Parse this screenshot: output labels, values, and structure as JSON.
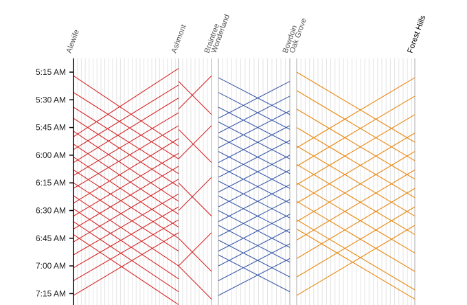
{
  "chart_data": {
    "type": "marey",
    "ylim": [
      308,
      441
    ],
    "yticks": [
      {
        "value": 315,
        "label": "5:15 AM"
      },
      {
        "value": 330,
        "label": "5:30 AM"
      },
      {
        "value": 345,
        "label": "5:45 AM"
      },
      {
        "value": 360,
        "label": "6:00 AM"
      },
      {
        "value": 375,
        "label": "6:15 AM"
      },
      {
        "value": 390,
        "label": "6:30 AM"
      },
      {
        "value": 405,
        "label": "6:45 AM"
      },
      {
        "value": 420,
        "label": "7:00 AM"
      },
      {
        "value": 435,
        "label": "7:15 AM"
      }
    ],
    "panels": [
      {
        "color": "#d62728",
        "stations": [
          "Alewife",
          "Ashmont"
        ],
        "trips": [
          [
            317,
            355
          ],
          [
            326,
            362
          ],
          [
            334,
            370
          ],
          [
            340,
            377
          ],
          [
            347,
            385
          ],
          [
            354,
            392
          ],
          [
            361,
            399
          ],
          [
            368,
            405
          ],
          [
            375,
            412
          ],
          [
            382,
            420
          ],
          [
            389,
            427
          ],
          [
            396,
            434
          ],
          [
            403,
            441
          ],
          [
            350,
            313
          ],
          [
            357,
            322
          ],
          [
            364,
            329
          ],
          [
            371,
            337
          ],
          [
            378,
            344
          ],
          [
            386,
            351
          ],
          [
            393,
            359
          ],
          [
            400,
            366
          ],
          [
            407,
            373
          ],
          [
            414,
            381
          ],
          [
            421,
            388
          ],
          [
            428,
            395
          ],
          [
            436,
            402
          ]
        ]
      },
      {
        "color": "#d62728",
        "stations": [
          null,
          "Braintree"
        ],
        "trips": [
          [
            320,
            338
          ],
          [
            335,
            317
          ],
          [
            346,
            364
          ],
          [
            362,
            344
          ],
          [
            375,
            393
          ],
          [
            390,
            372
          ],
          [
            405,
            423
          ],
          [
            420,
            402
          ],
          [
            420,
            438
          ]
        ]
      },
      {
        "color": "#3b5ba9",
        "stations": [
          "Wonderland",
          "Bowdoin"
        ],
        "trips": [
          [
            318,
            338
          ],
          [
            326,
            346
          ],
          [
            334,
            354
          ],
          [
            342,
            362
          ],
          [
            350,
            370
          ],
          [
            358,
            378
          ],
          [
            366,
            386
          ],
          [
            374,
            394
          ],
          [
            382,
            402
          ],
          [
            390,
            410
          ],
          [
            398,
            418
          ],
          [
            406,
            426
          ],
          [
            414,
            434
          ],
          [
            340,
            320
          ],
          [
            348,
            328
          ],
          [
            356,
            336
          ],
          [
            364,
            344
          ],
          [
            372,
            352
          ],
          [
            380,
            360
          ],
          [
            388,
            368
          ],
          [
            396,
            376
          ],
          [
            404,
            384
          ],
          [
            412,
            392
          ],
          [
            420,
            400
          ],
          [
            428,
            408
          ],
          [
            436,
            416
          ]
        ]
      },
      {
        "color": "#e8870e",
        "stations": [
          "Oak Grove",
          "Forest Hills"
        ],
        "trips": [
          [
            315,
            353
          ],
          [
            325,
            363
          ],
          [
            335,
            373
          ],
          [
            345,
            383
          ],
          [
            355,
            393
          ],
          [
            365,
            403
          ],
          [
            375,
            413
          ],
          [
            385,
            423
          ],
          [
            395,
            433
          ],
          [
            400,
            438
          ],
          [
            356,
            318
          ],
          [
            366,
            328
          ],
          [
            376,
            338
          ],
          [
            386,
            348
          ],
          [
            396,
            358
          ],
          [
            406,
            368
          ],
          [
            416,
            378
          ],
          [
            426,
            388
          ],
          [
            436,
            398
          ]
        ]
      }
    ]
  }
}
